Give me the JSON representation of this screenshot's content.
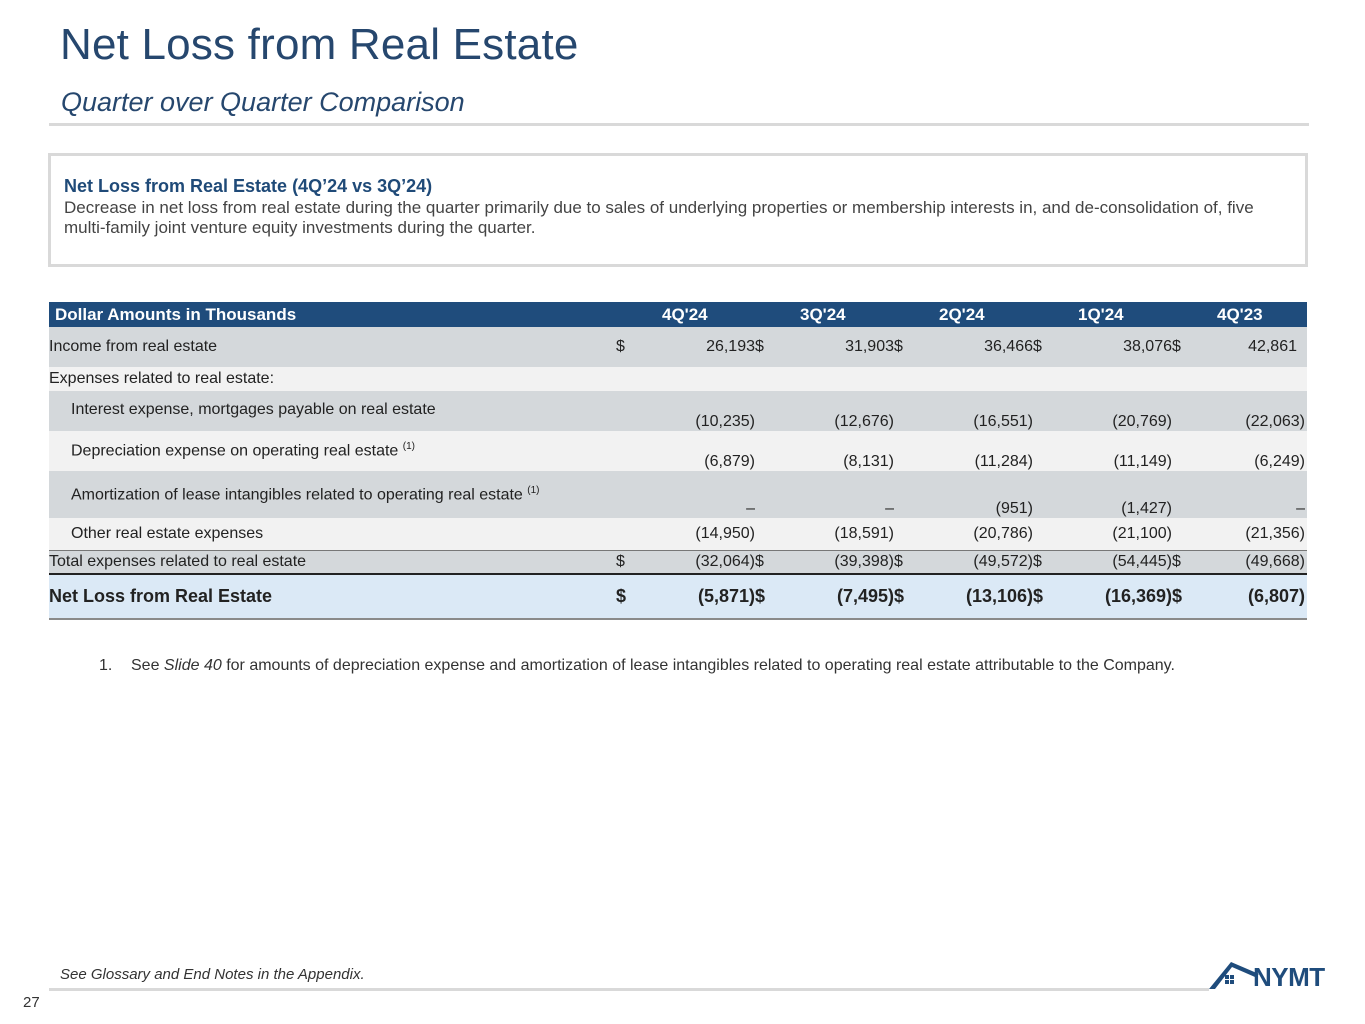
{
  "header": {
    "title": "Net Loss from Real Estate",
    "subtitle": "Quarter over Quarter Comparison"
  },
  "callout": {
    "heading": "Net Loss from Real Estate (4Q’24 vs 3Q’24)",
    "body": "Decrease in net loss from real estate during the quarter primarily due to sales of underlying properties or membership interests in, and de-consolidation of, five multi-family joint venture equity investments during the quarter."
  },
  "table": {
    "header_label": "Dollar Amounts in Thousands",
    "columns": [
      "4Q'24",
      "3Q'24",
      "2Q'24",
      "1Q'24",
      "4Q'23"
    ],
    "currency_symbol": "$",
    "rows": {
      "income": {
        "label": "Income from real estate",
        "values": [
          "26,193",
          "31,903",
          "36,466",
          "38,076",
          "42,861"
        ]
      },
      "expenses_header": {
        "label": "Expenses related to real estate:"
      },
      "interest": {
        "label": "Interest expense, mortgages payable on real estate",
        "values": [
          "(10,235)",
          "(12,676)",
          "(16,551)",
          "(20,769)",
          "(22,063)"
        ]
      },
      "depreciation": {
        "label": "Depreciation expense on operating real estate",
        "footnote_ref": "(1)",
        "values": [
          "(6,879)",
          "(8,131)",
          "(11,284)",
          "(11,149)",
          "(6,249)"
        ]
      },
      "amortization": {
        "label": "Amortization of lease intangibles related to operating real estate",
        "footnote_ref": "(1)",
        "values": [
          "–",
          "–",
          "(951)",
          "(1,427)",
          "–"
        ]
      },
      "other": {
        "label": "Other real estate expenses",
        "values": [
          "(14,950)",
          "(18,591)",
          "(20,786)",
          "(21,100)",
          "(21,356)"
        ]
      },
      "total": {
        "label": "Total expenses related to real estate",
        "values": [
          "(32,064)",
          "(39,398)",
          "(49,572)",
          "(54,445)",
          "(49,668)"
        ]
      },
      "net": {
        "label": "Net Loss from Real Estate",
        "values": [
          "(5,871)",
          "(7,495)",
          "(13,106)",
          "(16,369)",
          "(6,807)"
        ]
      }
    }
  },
  "footnote": {
    "number": "1.",
    "prefix": "See ",
    "slide_ref": "Slide 40",
    "suffix": " for amounts of depreciation expense and amortization of lease intangibles related to operating real estate attributable to the Company."
  },
  "footer": {
    "glossary_note": "See Glossary and End Notes in the Appendix.",
    "page_number": "27",
    "logo_text": "NYMT"
  },
  "colors": {
    "brand_navy": "#1f4c7c",
    "title_blue": "#26476e",
    "row_gray": "#d4d8db",
    "row_light": "#f2f2f2",
    "net_row_blue": "#dbe9f6"
  }
}
